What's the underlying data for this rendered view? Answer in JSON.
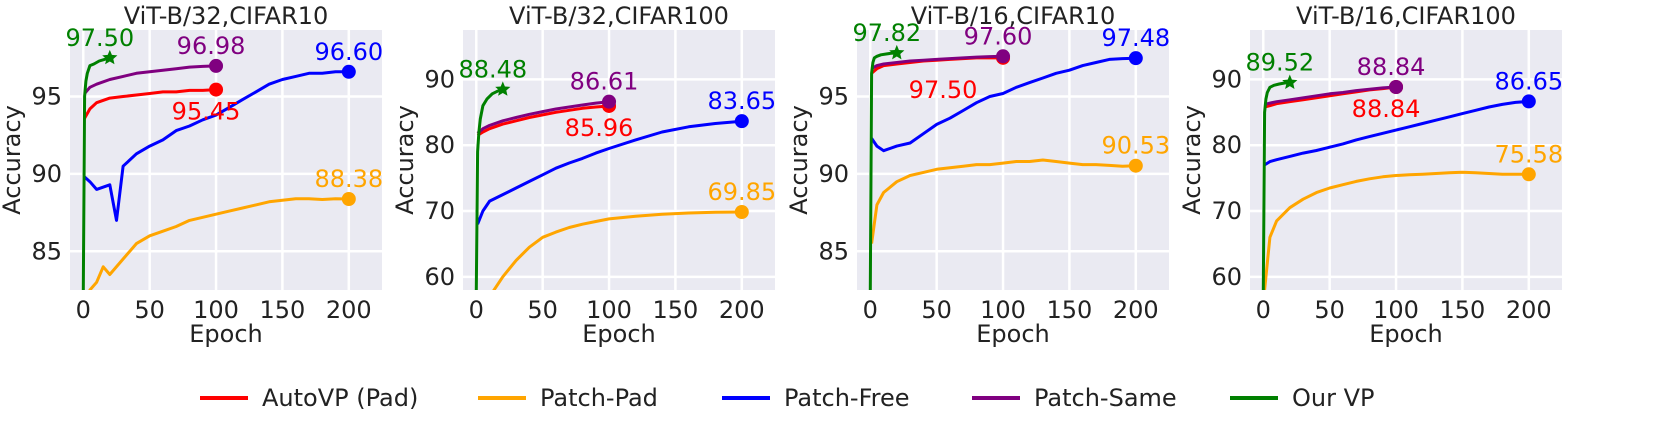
{
  "figure": {
    "legend": {
      "placement": "bottom",
      "items": [
        {
          "label": "AutoVP (Pad)",
          "color": "#ff0000"
        },
        {
          "label": "Patch-Pad",
          "color": "#ffa500"
        },
        {
          "label": "Patch-Free",
          "color": "#0000ff"
        },
        {
          "label": "Patch-Same",
          "color": "#800080"
        },
        {
          "label": "Our VP",
          "color": "#008000"
        }
      ]
    }
  },
  "chart_data": [
    {
      "type": "line",
      "title": "ViT-B/32,CIFAR10",
      "xlabel": "Epoch",
      "ylabel": "Accuracy",
      "xlim": [
        -10,
        225
      ],
      "ylim": [
        82.5,
        99.3
      ],
      "xticks": [
        0,
        50,
        100,
        150,
        200
      ],
      "yticks": [
        85,
        90,
        95
      ],
      "grid": true,
      "series": [
        {
          "name": "AutoVP (Pad)",
          "color": "#ff0000",
          "x": [
            1,
            5,
            10,
            20,
            30,
            40,
            50,
            60,
            70,
            80,
            90,
            100
          ],
          "y": [
            93.6,
            94.2,
            94.6,
            94.9,
            95.0,
            95.1,
            95.2,
            95.3,
            95.3,
            95.4,
            95.4,
            95.45
          ],
          "end_label": "95.45"
        },
        {
          "name": "Patch-Pad",
          "color": "#ffa500",
          "x": [
            1,
            5,
            10,
            15,
            20,
            30,
            40,
            50,
            60,
            70,
            80,
            90,
            100,
            110,
            120,
            130,
            140,
            150,
            160,
            170,
            180,
            190,
            200
          ],
          "y": [
            80.0,
            82.5,
            83.0,
            84.0,
            83.5,
            84.5,
            85.5,
            86.0,
            86.3,
            86.6,
            87.0,
            87.2,
            87.4,
            87.6,
            87.8,
            88.0,
            88.2,
            88.3,
            88.4,
            88.4,
            88.35,
            88.4,
            88.38
          ],
          "end_label": "88.38"
        },
        {
          "name": "Patch-Free",
          "color": "#0000ff",
          "x": [
            1,
            5,
            10,
            20,
            25,
            30,
            40,
            50,
            60,
            70,
            80,
            90,
            100,
            110,
            120,
            130,
            140,
            150,
            160,
            170,
            180,
            190,
            200
          ],
          "y": [
            89.8,
            89.5,
            89.0,
            89.3,
            87.0,
            90.5,
            91.3,
            91.8,
            92.2,
            92.8,
            93.1,
            93.5,
            93.8,
            94.3,
            94.8,
            95.3,
            95.8,
            96.1,
            96.3,
            96.5,
            96.5,
            96.6,
            96.6
          ],
          "end_label": "96.60"
        },
        {
          "name": "Patch-Same",
          "color": "#800080",
          "x": [
            1,
            5,
            10,
            20,
            30,
            40,
            50,
            60,
            70,
            80,
            90,
            100
          ],
          "y": [
            95.2,
            95.6,
            95.8,
            96.1,
            96.3,
            96.5,
            96.6,
            96.7,
            96.8,
            96.9,
            96.95,
            96.98
          ],
          "end_label": "96.98"
        },
        {
          "name": "Our VP",
          "color": "#008000",
          "x": [
            0,
            1,
            2,
            3,
            5,
            8,
            12,
            16,
            20
          ],
          "y": [
            82.5,
            95.0,
            96.0,
            96.5,
            97.0,
            97.1,
            97.3,
            97.4,
            97.5
          ],
          "end_label": "97.50"
        }
      ]
    },
    {
      "type": "line",
      "title": "ViT-B/32,CIFAR100",
      "xlabel": "Epoch",
      "ylabel": "Accuracy",
      "xlim": [
        -10,
        225
      ],
      "ylim": [
        58,
        97.5
      ],
      "xticks": [
        0,
        50,
        100,
        150,
        200
      ],
      "yticks": [
        60,
        70,
        80,
        90
      ],
      "grid": true,
      "series": [
        {
          "name": "AutoVP (Pad)",
          "color": "#ff0000",
          "x": [
            1,
            5,
            10,
            20,
            30,
            40,
            50,
            60,
            70,
            80,
            90,
            100
          ],
          "y": [
            81.5,
            82.0,
            82.5,
            83.2,
            83.7,
            84.2,
            84.6,
            85.0,
            85.3,
            85.6,
            85.8,
            85.96
          ],
          "end_label": "85.96"
        },
        {
          "name": "Patch-Pad",
          "color": "#ffa500",
          "x": [
            1,
            10,
            20,
            30,
            40,
            50,
            60,
            70,
            80,
            90,
            100,
            120,
            140,
            160,
            180,
            200
          ],
          "y": [
            52.0,
            57.0,
            60.0,
            62.5,
            64.5,
            66.0,
            66.8,
            67.5,
            68.0,
            68.4,
            68.8,
            69.2,
            69.5,
            69.7,
            69.8,
            69.85
          ],
          "end_label": "69.85"
        },
        {
          "name": "Patch-Free",
          "color": "#0000ff",
          "x": [
            1,
            5,
            10,
            20,
            30,
            40,
            50,
            60,
            70,
            80,
            90,
            100,
            120,
            140,
            160,
            180,
            200
          ],
          "y": [
            68.0,
            70.0,
            71.5,
            72.5,
            73.5,
            74.5,
            75.5,
            76.5,
            77.3,
            78.0,
            78.8,
            79.5,
            80.8,
            82.0,
            82.8,
            83.3,
            83.65
          ],
          "end_label": "83.65"
        },
        {
          "name": "Patch-Same",
          "color": "#800080",
          "x": [
            1,
            5,
            10,
            20,
            30,
            40,
            50,
            60,
            70,
            80,
            90,
            100
          ],
          "y": [
            81.8,
            82.5,
            83.0,
            83.7,
            84.2,
            84.7,
            85.1,
            85.5,
            85.8,
            86.1,
            86.4,
            86.61
          ],
          "end_label": "86.61"
        },
        {
          "name": "Our VP",
          "color": "#008000",
          "x": [
            0,
            1,
            2,
            3,
            5,
            8,
            12,
            16,
            20
          ],
          "y": [
            58.0,
            79.0,
            82.0,
            84.0,
            86.0,
            87.0,
            87.8,
            88.2,
            88.48
          ],
          "end_label": "88.48"
        }
      ]
    },
    {
      "type": "line",
      "title": "ViT-B/16,CIFAR10",
      "xlabel": "Epoch",
      "ylabel": "Accuracy",
      "xlim": [
        -10,
        225
      ],
      "ylim": [
        82.5,
        99.3
      ],
      "xticks": [
        0,
        50,
        100,
        150,
        200
      ],
      "yticks": [
        85,
        90,
        95
      ],
      "grid": true,
      "series": [
        {
          "name": "AutoVP (Pad)",
          "color": "#ff0000",
          "x": [
            1,
            5,
            10,
            20,
            30,
            40,
            50,
            60,
            70,
            80,
            90,
            100
          ],
          "y": [
            96.5,
            96.8,
            97.0,
            97.1,
            97.2,
            97.3,
            97.35,
            97.4,
            97.45,
            97.5,
            97.5,
            97.5
          ],
          "end_label": "97.50"
        },
        {
          "name": "Patch-Pad",
          "color": "#ffa500",
          "x": [
            1,
            5,
            10,
            20,
            30,
            40,
            50,
            60,
            70,
            80,
            90,
            100,
            110,
            120,
            130,
            140,
            150,
            160,
            170,
            180,
            190,
            200
          ],
          "y": [
            85.5,
            88.0,
            88.8,
            89.5,
            89.9,
            90.1,
            90.3,
            90.4,
            90.5,
            90.6,
            90.6,
            90.7,
            90.8,
            90.8,
            90.9,
            90.8,
            90.7,
            90.6,
            90.6,
            90.55,
            90.5,
            90.53
          ],
          "end_label": "90.53"
        },
        {
          "name": "Patch-Free",
          "color": "#0000ff",
          "x": [
            1,
            5,
            10,
            20,
            30,
            40,
            50,
            60,
            70,
            80,
            90,
            100,
            110,
            120,
            130,
            140,
            150,
            160,
            170,
            180,
            190,
            200
          ],
          "y": [
            92.3,
            91.8,
            91.5,
            91.8,
            92.0,
            92.6,
            93.2,
            93.6,
            94.1,
            94.6,
            95.0,
            95.2,
            95.6,
            95.9,
            96.2,
            96.5,
            96.7,
            97.0,
            97.2,
            97.4,
            97.45,
            97.48
          ],
          "end_label": "97.48"
        },
        {
          "name": "Patch-Same",
          "color": "#800080",
          "x": [
            1,
            5,
            10,
            20,
            30,
            40,
            50,
            60,
            70,
            80,
            90,
            100
          ],
          "y": [
            96.8,
            97.0,
            97.1,
            97.2,
            97.3,
            97.35,
            97.4,
            97.45,
            97.5,
            97.55,
            97.58,
            97.6
          ],
          "end_label": "97.60"
        },
        {
          "name": "Our VP",
          "color": "#008000",
          "x": [
            0,
            1,
            2,
            3,
            5,
            8,
            12,
            16,
            20
          ],
          "y": [
            82.5,
            96.5,
            97.2,
            97.5,
            97.6,
            97.7,
            97.75,
            97.8,
            97.82
          ],
          "end_label": "97.82"
        }
      ]
    },
    {
      "type": "line",
      "title": "ViT-B/16,CIFAR100",
      "xlabel": "Epoch",
      "ylabel": "Accuracy",
      "xlim": [
        -10,
        225
      ],
      "ylim": [
        58,
        97.5
      ],
      "xticks": [
        0,
        50,
        100,
        150,
        200
      ],
      "yticks": [
        60,
        70,
        80,
        90
      ],
      "grid": true,
      "series": [
        {
          "name": "AutoVP (Pad)",
          "color": "#ff0000",
          "x": [
            1,
            5,
            10,
            20,
            30,
            40,
            50,
            60,
            70,
            80,
            90,
            100
          ],
          "y": [
            85.8,
            86.0,
            86.3,
            86.6,
            86.9,
            87.2,
            87.5,
            87.8,
            88.1,
            88.4,
            88.6,
            88.84
          ],
          "end_label": "88.84"
        },
        {
          "name": "Patch-Pad",
          "color": "#ffa500",
          "x": [
            1,
            5,
            10,
            20,
            30,
            40,
            50,
            60,
            70,
            80,
            90,
            100,
            110,
            120,
            130,
            140,
            150,
            160,
            170,
            180,
            190,
            200
          ],
          "y": [
            58.0,
            66.0,
            68.5,
            70.5,
            71.8,
            72.8,
            73.5,
            74.0,
            74.5,
            74.9,
            75.2,
            75.4,
            75.5,
            75.6,
            75.7,
            75.8,
            75.9,
            75.8,
            75.7,
            75.6,
            75.6,
            75.58
          ],
          "end_label": "75.58"
        },
        {
          "name": "Patch-Free",
          "color": "#0000ff",
          "x": [
            1,
            5,
            10,
            20,
            30,
            40,
            50,
            60,
            70,
            80,
            90,
            100,
            110,
            120,
            130,
            140,
            150,
            160,
            170,
            180,
            190,
            200
          ],
          "y": [
            77.0,
            77.5,
            77.8,
            78.3,
            78.8,
            79.2,
            79.7,
            80.2,
            80.8,
            81.3,
            81.8,
            82.3,
            82.8,
            83.3,
            83.8,
            84.3,
            84.8,
            85.3,
            85.8,
            86.2,
            86.5,
            86.65
          ],
          "end_label": "86.65"
        },
        {
          "name": "Patch-Same",
          "color": "#800080",
          "x": [
            1,
            5,
            10,
            20,
            30,
            40,
            50,
            60,
            70,
            80,
            90,
            100
          ],
          "y": [
            86.2,
            86.4,
            86.6,
            86.9,
            87.2,
            87.5,
            87.8,
            88.0,
            88.3,
            88.5,
            88.7,
            88.84
          ],
          "end_label": "88.84"
        },
        {
          "name": "Our VP",
          "color": "#008000",
          "x": [
            0,
            1,
            2,
            3,
            5,
            8,
            12,
            16,
            20
          ],
          "y": [
            58.0,
            85.0,
            87.0,
            88.0,
            88.8,
            89.1,
            89.3,
            89.45,
            89.52
          ],
          "end_label": "89.52"
        }
      ]
    }
  ]
}
